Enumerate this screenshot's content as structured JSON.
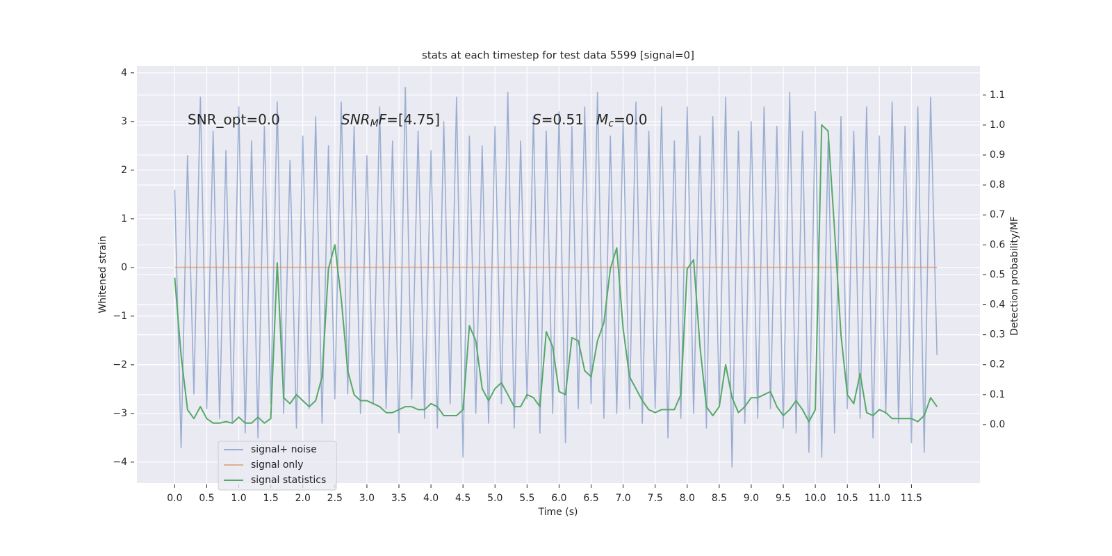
{
  "chart_data": {
    "type": "line",
    "title": "stats at each timestep for test data 5599 [signal=0]",
    "x_label": "Time (s)",
    "y_label": "Whitened strain",
    "y2_label": "Detection probability/MF",
    "annotations": [
      [
        "SNR_opt=0.0"
      ],
      [
        "SNR",
        "M",
        "F",
        "=[4.75]"
      ],
      [
        "S",
        "=0.51",
        "M",
        "c",
        "=0.0"
      ]
    ],
    "xlim": [
      -0.59,
      12.57
    ],
    "ylim": [
      -4.43,
      4.14
    ],
    "y2lim": [
      -0.195,
      1.197
    ],
    "xticks": [
      {
        "value": 0,
        "label": "0.0"
      },
      {
        "value": 0.5,
        "label": "0.5"
      },
      {
        "value": 1,
        "label": "1.0"
      },
      {
        "value": 1.5,
        "label": "1.5"
      },
      {
        "value": 2,
        "label": "2.0"
      },
      {
        "value": 2.5,
        "label": "2.5"
      },
      {
        "value": 3,
        "label": "3.0"
      },
      {
        "value": 3.5,
        "label": "3.5"
      },
      {
        "value": 4,
        "label": "4.0"
      },
      {
        "value": 4.5,
        "label": "4.5"
      },
      {
        "value": 5,
        "label": "5.0"
      },
      {
        "value": 5.5,
        "label": "5.5"
      },
      {
        "value": 6,
        "label": "6.0"
      },
      {
        "value": 6.5,
        "label": "6.5"
      },
      {
        "value": 7,
        "label": "7.0"
      },
      {
        "value": 7.5,
        "label": "7.5"
      },
      {
        "value": 8,
        "label": "8.0"
      },
      {
        "value": 8.5,
        "label": "8.5"
      },
      {
        "value": 9,
        "label": "9.0"
      },
      {
        "value": 9.5,
        "label": "9.5"
      },
      {
        "value": 10,
        "label": "10.0"
      },
      {
        "value": 10.5,
        "label": "10.5"
      },
      {
        "value": 11,
        "label": "11.0"
      },
      {
        "value": 11.5,
        "label": "11.5"
      }
    ],
    "yticks": [
      {
        "value": -4,
        "label": "−4"
      },
      {
        "value": -3,
        "label": "−3"
      },
      {
        "value": -2,
        "label": "−2"
      },
      {
        "value": -1,
        "label": "−1"
      },
      0,
      1,
      2,
      3,
      4
    ],
    "y2ticks": [
      {
        "value": 0,
        "label": "0.0"
      },
      {
        "value": 0.1,
        "label": "0.1"
      },
      {
        "value": 0.2,
        "label": "0.2"
      },
      {
        "value": 0.3,
        "label": "0.3"
      },
      {
        "value": 0.4,
        "label": "0.4"
      },
      {
        "value": 0.5,
        "label": "0.5"
      },
      {
        "value": 0.6,
        "label": "0.6"
      },
      {
        "value": 0.7,
        "label": "0.7"
      },
      {
        "value": 0.8,
        "label": "0.8"
      },
      {
        "value": 0.9,
        "label": "0.9"
      },
      {
        "value": 1,
        "label": "1.0"
      },
      {
        "value": 1.1,
        "label": "1.1"
      }
    ],
    "grid": true,
    "legend_loc": "lower left",
    "x": [
      0,
      0.1,
      0.2,
      0.3,
      0.4,
      0.5,
      0.6,
      0.7,
      0.8,
      0.9,
      1,
      1.1,
      1.2,
      1.3,
      1.4,
      1.5,
      1.6,
      1.7,
      1.8,
      1.9,
      2,
      2.1,
      2.2,
      2.3,
      2.4,
      2.5,
      2.6,
      2.7,
      2.8,
      2.9,
      3,
      3.1,
      3.2,
      3.3,
      3.4,
      3.5,
      3.6,
      3.7,
      3.8,
      3.9,
      4,
      4.1,
      4.2,
      4.3,
      4.4,
      4.5,
      4.6,
      4.7,
      4.8,
      4.9,
      5,
      5.1,
      5.2,
      5.3,
      5.4,
      5.5,
      5.6,
      5.7,
      5.8,
      5.9,
      6,
      6.1,
      6.2,
      6.3,
      6.4,
      6.5,
      6.6,
      6.7,
      6.8,
      6.9,
      7,
      7.1,
      7.2,
      7.3,
      7.4,
      7.5,
      7.6,
      7.7,
      7.8,
      7.9,
      8,
      8.1,
      8.2,
      8.3,
      8.4,
      8.5,
      8.6,
      8.7,
      8.8,
      8.9,
      9,
      9.1,
      9.2,
      9.3,
      9.4,
      9.5,
      9.6,
      9.7,
      9.8,
      9.9,
      10,
      10.1,
      10.2,
      10.3,
      10.4,
      10.5,
      10.6,
      10.7,
      10.8,
      10.9,
      11,
      11.1,
      11.2,
      11.3,
      11.4,
      11.5,
      11.6,
      11.7,
      11.8,
      11.9
    ],
    "series": [
      {
        "name": "signal+ noise",
        "color": "#4c72b0",
        "opacity": 0.5,
        "values": [
          1.6,
          -3.7,
          2.3,
          -2.6,
          3.5,
          -2.9,
          2.8,
          -3.1,
          2.4,
          -3.2,
          3.3,
          -3.4,
          2.6,
          -3.5,
          2.9,
          -2.8,
          3.4,
          -3.0,
          2.2,
          -3.3,
          2.7,
          -2.9,
          3.1,
          -3.2,
          2.5,
          -2.7,
          3.4,
          -2.6,
          2.9,
          -3.0,
          2.3,
          -2.8,
          3.3,
          -2.9,
          2.6,
          -3.4,
          3.7,
          -2.7,
          2.8,
          -3.1,
          2.4,
          -3.3,
          3.0,
          -2.8,
          3.5,
          -3.9,
          2.7,
          -3.0,
          2.5,
          -3.2,
          2.9,
          -2.8,
          3.6,
          -3.3,
          2.6,
          -2.7,
          3.1,
          -3.4,
          2.8,
          -3.0,
          3.2,
          -3.6,
          2.9,
          -2.9,
          3.3,
          -2.8,
          3.6,
          -3.1,
          2.7,
          -3.0,
          3.0,
          -2.9,
          3.4,
          -3.2,
          2.8,
          -2.9,
          3.3,
          -3.5,
          2.6,
          -3.1,
          3.3,
          -3.0,
          2.7,
          -3.3,
          3.1,
          -2.8,
          3.5,
          -4.1,
          2.8,
          -3.2,
          3.0,
          -3.1,
          3.3,
          -2.9,
          2.9,
          -3.3,
          3.6,
          -3.4,
          2.8,
          -3.8,
          3.2,
          -3.9,
          2.6,
          -3.4,
          3.1,
          -2.9,
          2.8,
          -3.1,
          3.3,
          -3.5,
          2.7,
          -3.0,
          3.4,
          -3.2,
          2.9,
          -3.6,
          3.3,
          -3.8,
          3.5,
          -1.8
        ]
      },
      {
        "name": "signal only",
        "color": "#dd8452",
        "opacity": 0.6,
        "values": [
          0,
          0,
          0,
          0,
          0,
          0,
          0,
          0,
          0,
          0,
          0,
          0,
          0,
          0,
          0,
          0,
          0,
          0,
          0,
          0,
          0,
          0,
          0,
          0,
          0,
          0,
          0,
          0,
          0,
          0,
          0,
          0,
          0,
          0,
          0,
          0,
          0,
          0,
          0,
          0,
          0,
          0,
          0,
          0,
          0,
          0,
          0,
          0,
          0,
          0,
          0,
          0,
          0,
          0,
          0,
          0,
          0,
          0,
          0,
          0,
          0,
          0,
          0,
          0,
          0,
          0,
          0,
          0,
          0,
          0,
          0,
          0,
          0,
          0,
          0,
          0,
          0,
          0,
          0,
          0,
          0,
          0,
          0,
          0,
          0,
          0,
          0,
          0,
          0,
          0,
          0,
          0,
          0,
          0,
          0,
          0,
          0,
          0,
          0,
          0,
          0,
          0,
          0,
          0,
          0,
          0,
          0,
          0,
          0,
          0,
          0,
          0,
          0,
          0,
          0,
          0,
          0,
          0,
          0,
          0
        ]
      },
      {
        "name": "signal statistics",
        "color": "#55a868",
        "opacity": 1,
        "axis": "y2",
        "values": [
          0.49,
          0.23,
          0.05,
          0.02,
          0.06,
          0.02,
          0.005,
          0.005,
          0.01,
          0.005,
          0.025,
          0.005,
          0.005,
          0.025,
          0.005,
          0.02,
          0.54,
          0.09,
          0.07,
          0.1,
          0.08,
          0.06,
          0.08,
          0.16,
          0.52,
          0.6,
          0.42,
          0.18,
          0.1,
          0.08,
          0.08,
          0.07,
          0.06,
          0.04,
          0.04,
          0.05,
          0.06,
          0.06,
          0.05,
          0.05,
          0.07,
          0.06,
          0.03,
          0.03,
          0.03,
          0.05,
          0.33,
          0.28,
          0.12,
          0.08,
          0.12,
          0.14,
          0.1,
          0.06,
          0.06,
          0.1,
          0.09,
          0.06,
          0.31,
          0.26,
          0.11,
          0.1,
          0.29,
          0.28,
          0.18,
          0.16,
          0.28,
          0.34,
          0.52,
          0.59,
          0.32,
          0.16,
          0.12,
          0.08,
          0.05,
          0.04,
          0.05,
          0.05,
          0.05,
          0.1,
          0.52,
          0.55,
          0.26,
          0.06,
          0.03,
          0.06,
          0.2,
          0.09,
          0.04,
          0.06,
          0.09,
          0.09,
          0.1,
          0.11,
          0.06,
          0.03,
          0.05,
          0.08,
          0.05,
          0.01,
          0.05,
          1.0,
          0.98,
          0.65,
          0.3,
          0.1,
          0.07,
          0.17,
          0.04,
          0.03,
          0.05,
          0.04,
          0.02,
          0.02,
          0.02,
          0.02,
          0.01,
          0.03,
          0.09,
          0.06
        ]
      }
    ]
  }
}
